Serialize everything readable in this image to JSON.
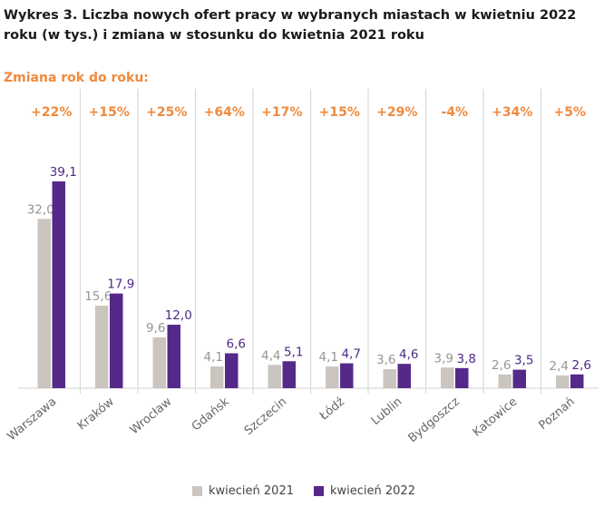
{
  "title": "Wykres 3. Liczba nowych ofert pracy w wybranych miastach w kwietniu 2022 roku (w tys.) i zmiana w stosunku do kwietnia 2021 roku",
  "change_heading": "Zmiana rok do roku:",
  "colors": {
    "series_2021": "#cbc5bf",
    "series_2022": "#55298a",
    "change": "#f08a3c",
    "divider": "#d9d9d9"
  },
  "chart_data": {
    "type": "bar",
    "title": "Wykres 3. Liczba nowych ofert pracy w wybranych miastach w kwietniu 2022 roku (w tys.) i zmiana w stosunku do kwietnia 2021 roku",
    "categories": [
      "Warszawa",
      "Kraków",
      "Wrocław",
      "Gdańsk",
      "Szczecin",
      "Łódź",
      "Lublin",
      "Bydgoszcz",
      "Katowice",
      "Poznań"
    ],
    "series": [
      {
        "name": "kwiecień 2021",
        "values": [
          32.0,
          15.6,
          9.6,
          4.1,
          4.4,
          4.1,
          3.6,
          3.9,
          2.6,
          2.4
        ],
        "labels": [
          "32,0",
          "15,6",
          "9,6",
          "4,1",
          "4,4",
          "4,1",
          "3,6",
          "3,9",
          "2,6",
          "2,4"
        ]
      },
      {
        "name": "kwiecień 2022",
        "values": [
          39.1,
          17.9,
          12.0,
          6.6,
          5.1,
          4.7,
          4.6,
          3.8,
          3.5,
          2.6
        ],
        "labels": [
          "39,1",
          "17,9",
          "12,0",
          "6,6",
          "5,1",
          "4,7",
          "4,6",
          "3,8",
          "3,5",
          "2,6"
        ]
      }
    ],
    "changes": [
      "+22%",
      "+15%",
      "+25%",
      "+64%",
      "+17%",
      "+15%",
      "+29%",
      "-4%",
      "+34%",
      "+5%"
    ],
    "xlabel": "",
    "ylabel": "",
    "ylim": [
      0,
      39.1
    ],
    "grid": false,
    "legend_position": "bottom"
  }
}
